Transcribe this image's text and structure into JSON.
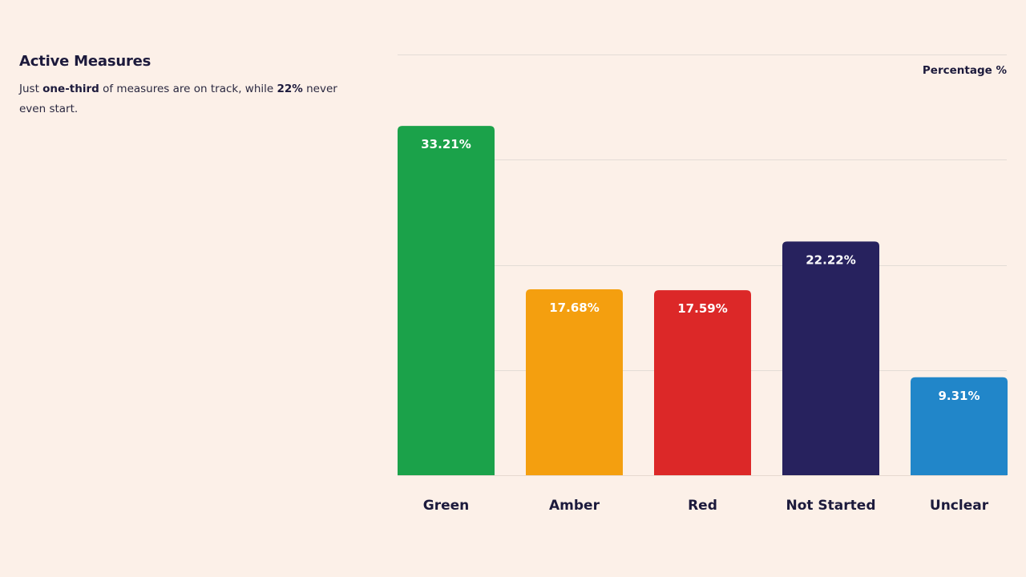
{
  "intro": {
    "title": "Active Measures",
    "text_1": "Just ",
    "bold_1": "one-third",
    "text_2": " of measures are on track, while ",
    "bold_2": "22%",
    "text_3": " never even start."
  },
  "chart_data": {
    "type": "bar",
    "unit_label": "Percentage %",
    "categories": [
      "Green",
      "Amber",
      "Red",
      "Not Started",
      "Unclear"
    ],
    "values": [
      33.21,
      17.68,
      17.59,
      22.22,
      9.31
    ],
    "value_labels": [
      "33.21%",
      "17.68%",
      "17.59%",
      "22.22%",
      "9.31%"
    ],
    "colors": [
      "#1ba24a",
      "#f49f0f",
      "#dc2828",
      "#27225e",
      "#2186c9"
    ],
    "ylim": [
      0,
      40
    ],
    "grid": true
  }
}
